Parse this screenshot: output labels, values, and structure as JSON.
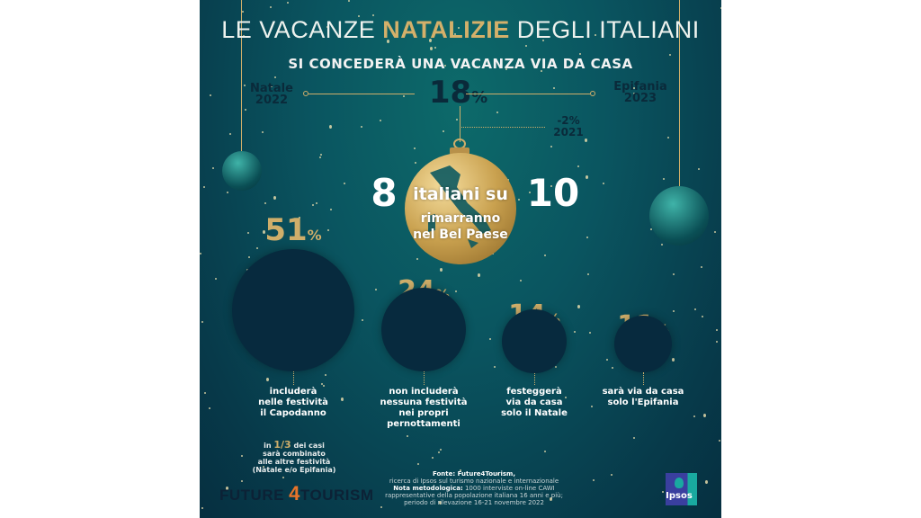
{
  "title": {
    "prefix": "LE VACANZE ",
    "highlight": "NATALIZIE",
    "suffix": " DEGLI ITALIANI"
  },
  "subtitle": "SI CONCEDERÀ UNA VACANZA VIA DA CASA",
  "timeline": {
    "left_label": "Natale",
    "left_year": "2022",
    "value": "18",
    "unit": "%",
    "right_label": "Epifania",
    "right_year": "2023",
    "delta": "-2%",
    "delta_year": "2021"
  },
  "ornament": {
    "left_number": "8",
    "right_number": "10",
    "line1": "italiani su",
    "line2": "rimarranno",
    "line3": "nel Bel Paese"
  },
  "stats": [
    {
      "value": "51",
      "unit": "%",
      "fraction": 0.51,
      "line1": "includerà",
      "line2": "nelle festività",
      "line3": "il Capodanno"
    },
    {
      "value": "24",
      "unit": "%",
      "fraction": 0.24,
      "line1": "non includerà",
      "line2": "nessuna festività",
      "line3": "nei propri",
      "line4": "pernottamenti"
    },
    {
      "value": "14",
      "unit": "%",
      "fraction": 0.14,
      "line1": "festeggerà",
      "line2": "via da casa",
      "line3": "solo il Natale"
    },
    {
      "value": "11",
      "unit": "%",
      "fraction": 0.11,
      "line1": "sarà via da casa",
      "line2": "solo l'Epifania"
    }
  ],
  "note": {
    "pre": "in ",
    "highlight": "1/3",
    "post": " dei casi",
    "line2": "sarà combinato",
    "line3": "alle altre festività",
    "line4": "(Natale e/o Epifania)"
  },
  "source": {
    "label": "Fonte: Future4Tourism,",
    "line2": "ricerca di Ipsos sul turismo nazionale e internazionale",
    "method_label": "Nota metodologica:",
    "method": " 1000 interviste on-line CAWI",
    "line4": "rappresentative della popolazione italiana 16 anni e più;",
    "line5": "periodo di rilevazione 16-21 novembre 2022"
  },
  "logos": {
    "future_a": "FUTURE ",
    "future_4": "4",
    "future_b": "TOURISM",
    "ipsos": "Ipsos"
  },
  "colors": {
    "gold": "#cfae6a",
    "dark": "#0a2a3a",
    "bg": "#0a5560",
    "orange": "#e8742a",
    "ipsos_blue": "#3a3f9f",
    "ipsos_teal": "#19a9a0"
  }
}
